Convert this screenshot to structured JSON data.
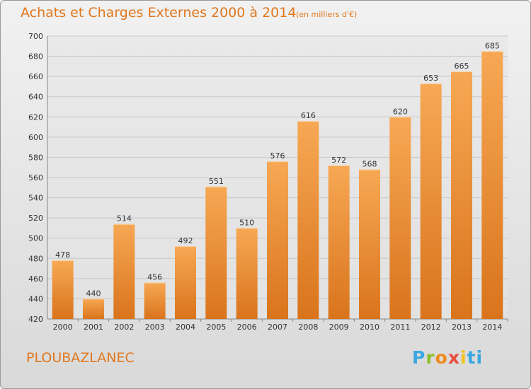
{
  "header": {
    "title": "Achats et Charges Externes 2000 à 2014",
    "subtitle": "(en milliers d'€)"
  },
  "footer": {
    "commune": "PLOUBAZLANEC",
    "logo_text": "Proxiti"
  },
  "colors": {
    "title": "#e0781e",
    "bar_light": "#f7a854",
    "bar_dark": "#d9741c",
    "grid": "#c8c8c8"
  },
  "chart_data": {
    "type": "bar",
    "categories": [
      "2000",
      "2001",
      "2002",
      "2003",
      "2004",
      "2005",
      "2006",
      "2007",
      "2008",
      "2009",
      "2010",
      "2011",
      "2012",
      "2013",
      "2014"
    ],
    "values": [
      478,
      440,
      514,
      456,
      492,
      551,
      510,
      576,
      616,
      572,
      568,
      620,
      653,
      665,
      685
    ],
    "ylim": [
      420,
      700
    ],
    "yticks": [
      420,
      440,
      460,
      480,
      500,
      520,
      540,
      560,
      580,
      600,
      620,
      640,
      660,
      680,
      700
    ],
    "grid": true,
    "legend": "none"
  }
}
